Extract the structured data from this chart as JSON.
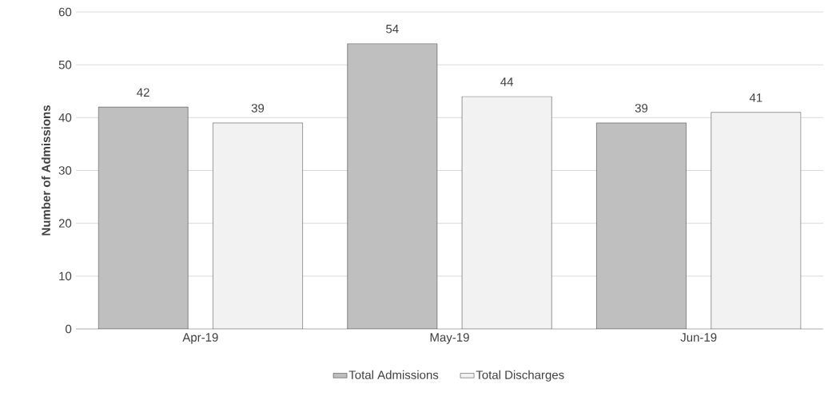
{
  "chart_data": {
    "type": "bar",
    "ylabel": "Number of Admissions",
    "categories": [
      "Apr-19",
      "May-19",
      "Jun-19"
    ],
    "series": [
      {
        "name": "Total Admissions",
        "color": "#bfbfbf",
        "values": [
          42,
          54,
          39
        ]
      },
      {
        "name": "Total Discharges",
        "color": "#f2f2f2",
        "values": [
          39,
          44,
          41
        ]
      }
    ],
    "ylim": [
      0,
      60
    ],
    "yticks": [
      0,
      10,
      20,
      30,
      40,
      50,
      60
    ],
    "grid": "y",
    "legend": "bottom",
    "data_labels": true
  }
}
